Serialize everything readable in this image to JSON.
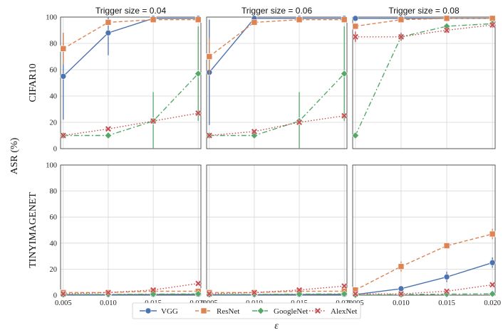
{
  "chart_data": {
    "type": "line",
    "x": [
      0.005,
      0.01,
      0.015,
      0.02
    ],
    "x_tick_labels": [
      "0.005",
      "0.010",
      "0.015",
      "0.020"
    ],
    "xlabel": "ε",
    "ylabel": "ASR (%)",
    "ylim": [
      0,
      100
    ],
    "y_ticks": [
      0,
      20,
      40,
      60,
      80,
      100
    ],
    "rows": [
      "CIFAR10",
      "TINYIMAGENET"
    ],
    "columns": [
      "Trigger size = 0.04",
      "Trigger size = 0.06",
      "Trigger size = 0.08"
    ],
    "legend": [
      "VGG",
      "ResNet",
      "GoogleNet",
      "AlexNet"
    ],
    "legend_position": "bottom-center",
    "grid": true,
    "colors": {
      "VGG": "#4c72b0",
      "ResNet": "#dd8452",
      "GoogleNet": "#55a868",
      "AlexNet": "#c44e52"
    },
    "panels": [
      {
        "row": 0,
        "col": 0,
        "series": [
          {
            "name": "VGG",
            "values": [
              55,
              88,
              99,
              99
            ],
            "err": [
              33,
              17,
              0,
              0
            ]
          },
          {
            "name": "ResNet",
            "values": [
              76,
              96,
              98,
              98
            ],
            "err": [
              12,
              2,
              1,
              1
            ]
          },
          {
            "name": "GoogleNet",
            "values": [
              10,
              10,
              21,
              57
            ],
            "err": [
              0,
              0,
              22,
              36
            ]
          },
          {
            "name": "AlexNet",
            "values": [
              10,
              15,
              21,
              27
            ],
            "err": [
              1,
              1,
              1,
              1
            ]
          }
        ]
      },
      {
        "row": 0,
        "col": 1,
        "series": [
          {
            "name": "VGG",
            "values": [
              58,
              99,
              99,
              99
            ],
            "err": [
              40,
              1,
              0,
              0
            ]
          },
          {
            "name": "ResNet",
            "values": [
              70,
              96,
              98,
              98
            ],
            "err": [
              14,
              2,
              1,
              1
            ]
          },
          {
            "name": "GoogleNet",
            "values": [
              10,
              10,
              21,
              57
            ],
            "err": [
              0,
              0,
              22,
              36
            ]
          },
          {
            "name": "AlexNet",
            "values": [
              10,
              13,
              20,
              25
            ],
            "err": [
              1,
              1,
              1,
              1
            ]
          }
        ]
      },
      {
        "row": 0,
        "col": 2,
        "series": [
          {
            "name": "VGG",
            "values": [
              99,
              99,
              99,
              99
            ],
            "err": [
              0,
              0,
              0,
              0
            ]
          },
          {
            "name": "ResNet",
            "values": [
              93,
              98,
              99,
              99
            ],
            "err": [
              2,
              1,
              1,
              1
            ]
          },
          {
            "name": "GoogleNet",
            "values": [
              10,
              85,
              93,
              95
            ],
            "err": [
              0,
              3,
              2,
              2
            ]
          },
          {
            "name": "AlexNet",
            "values": [
              85,
              85,
              90,
              94
            ],
            "err": [
              4,
              3,
              2,
              2
            ]
          }
        ]
      },
      {
        "row": 1,
        "col": 0,
        "series": [
          {
            "name": "VGG",
            "values": [
              0.3,
              0.4,
              0.5,
              0.6
            ],
            "err": [
              0,
              0,
              0,
              0
            ]
          },
          {
            "name": "ResNet",
            "values": [
              2,
              2,
              3,
              3
            ],
            "err": [
              0.5,
              0.5,
              0.5,
              0.5
            ]
          },
          {
            "name": "GoogleNet",
            "values": [
              0.5,
              0.6,
              0.8,
              1
            ],
            "err": [
              0,
              0,
              0,
              0
            ]
          },
          {
            "name": "AlexNet",
            "values": [
              1,
              2,
              4,
              9
            ],
            "err": [
              0.5,
              0.5,
              1,
              1
            ]
          }
        ]
      },
      {
        "row": 1,
        "col": 1,
        "series": [
          {
            "name": "VGG",
            "values": [
              0.3,
              0.4,
              0.5,
              0.6
            ],
            "err": [
              0,
              0,
              0,
              0
            ]
          },
          {
            "name": "ResNet",
            "values": [
              2,
              2,
              3,
              3
            ],
            "err": [
              0.5,
              0.5,
              0.5,
              0.5
            ]
          },
          {
            "name": "GoogleNet",
            "values": [
              0.5,
              0.6,
              0.8,
              1
            ],
            "err": [
              0,
              0,
              0,
              0
            ]
          },
          {
            "name": "AlexNet",
            "values": [
              1,
              2,
              4,
              7
            ],
            "err": [
              0.5,
              0.5,
              1,
              1
            ]
          }
        ]
      },
      {
        "row": 1,
        "col": 2,
        "series": [
          {
            "name": "VGG",
            "values": [
              0.5,
              5,
              14,
              25
            ],
            "err": [
              0.3,
              2,
              4,
              4
            ]
          },
          {
            "name": "ResNet",
            "values": [
              4,
              22,
              38,
              47
            ],
            "err": [
              2,
              4,
              2,
              4
            ]
          },
          {
            "name": "GoogleNet",
            "values": [
              0.2,
              0.5,
              0.8,
              1
            ],
            "err": [
              0,
              0,
              0,
              0
            ]
          },
          {
            "name": "AlexNet",
            "values": [
              1,
              1,
              3,
              8
            ],
            "err": [
              0.5,
              0.5,
              1,
              1
            ]
          }
        ]
      }
    ]
  }
}
